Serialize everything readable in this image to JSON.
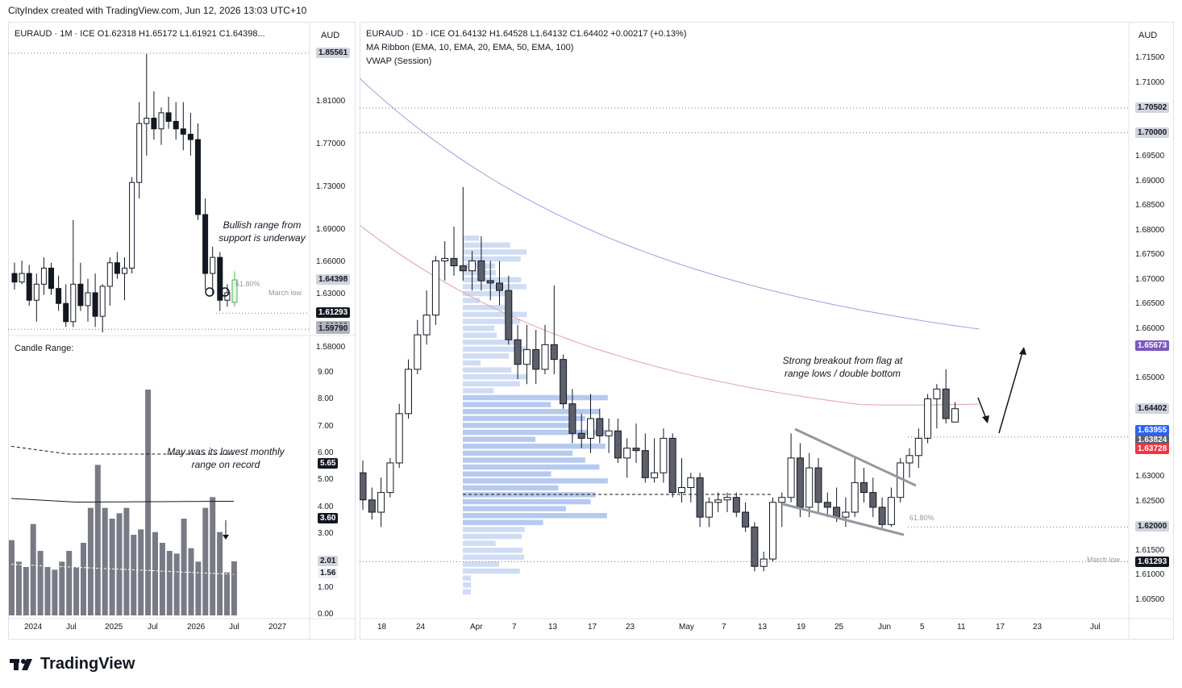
{
  "header": "CityIndex created with TradingView.com, Jun 12, 2026 13:03 UTC+10",
  "left_chart": {
    "title": "EURAUD · 1M · ICE",
    "ohlc": "O1.62318  H1.65172  L1.61921  C1.64398...",
    "currency": "AUD",
    "price_ticks": [
      "1.85561",
      "1.81000",
      "1.77000",
      "1.73000",
      "1.69000",
      "1.66000",
      "1.64398",
      "1.63000",
      "1.61293",
      "1.60000",
      "1.59790",
      "1.58000"
    ],
    "x_ticks": [
      "2024",
      "Jul",
      "2025",
      "Jul",
      "2026",
      "Jul",
      "2027"
    ],
    "annotation": "Bullish range from support is underway",
    "fib_label": "61.80%",
    "march_low_label": "March low"
  },
  "range_chart": {
    "title": "Candle Range:",
    "y_ticks": [
      "9.00",
      "8.00",
      "7.00",
      "6.00",
      "5.65",
      "5.00",
      "4.00",
      "3.60",
      "3.00",
      "2.01",
      "1.56",
      "1.00",
      "0.00"
    ],
    "annotation": "May was its lowest monthly range on record"
  },
  "right_chart": {
    "title": "EURAUD · 1D · ICE",
    "ohlc": "O1.64132  H1.64528  L1.64132  C1.64402  +0.00217 (+0.13%)",
    "indicator1": "MA Ribbon (EMA, 10, EMA, 20, EMA, 50, EMA, 100)",
    "indicator2": "VWAP (Session)",
    "currency": "AUD",
    "price_ticks": [
      "1.71500",
      "1.71000",
      "1.70502",
      "1.70000",
      "1.69500",
      "1.69000",
      "1.68500",
      "1.68000",
      "1.67500",
      "1.67000",
      "1.66500",
      "1.66000",
      "1.65673",
      "1.65000",
      "1.64402",
      "1.63955",
      "1.63824",
      "1.63728",
      "1.63000",
      "1.62500",
      "1.62000",
      "1.61500",
      "1.61293",
      "1.61000",
      "1.60500"
    ],
    "x_ticks": [
      "18",
      "24",
      "Apr",
      "7",
      "13",
      "17",
      "23",
      "May",
      "7",
      "13",
      "19",
      "25",
      "Jun",
      "5",
      "11",
      "17",
      "23",
      "Jul"
    ],
    "annotation": "Strong breakout from flag at range lows / double bottom",
    "fib_label": "61.80%",
    "march_low_label": "March low"
  },
  "chart_data": [
    {
      "type": "candlestick",
      "title": "EURAUD · 1M · ICE",
      "note": "monthly candles, 2024 to Jun 2026",
      "candles": [
        [
          1.65,
          1.66,
          1.635,
          1.642
        ],
        [
          1.642,
          1.662,
          1.64,
          1.65
        ],
        [
          1.65,
          1.658,
          1.62,
          1.625
        ],
        [
          1.625,
          1.65,
          1.605,
          1.64
        ],
        [
          1.64,
          1.665,
          1.63,
          1.655
        ],
        [
          1.655,
          1.66,
          1.63,
          1.636
        ],
        [
          1.636,
          1.648,
          1.615,
          1.622
        ],
        [
          1.622,
          1.64,
          1.6,
          1.605
        ],
        [
          1.605,
          1.7,
          1.6,
          1.64
        ],
        [
          1.64,
          1.66,
          1.615,
          1.62
        ],
        [
          1.62,
          1.645,
          1.605,
          1.632
        ],
        [
          1.632,
          1.65,
          1.6,
          1.61
        ],
        [
          1.61,
          1.64,
          1.595,
          1.638
        ],
        [
          1.638,
          1.665,
          1.62,
          1.66
        ],
        [
          1.66,
          1.67,
          1.645,
          1.65
        ],
        [
          1.65,
          1.665,
          1.625,
          1.655
        ],
        [
          1.655,
          1.74,
          1.65,
          1.735
        ],
        [
          1.735,
          1.81,
          1.72,
          1.79
        ],
        [
          1.79,
          1.855,
          1.76,
          1.795
        ],
        [
          1.795,
          1.82,
          1.775,
          1.785
        ],
        [
          1.785,
          1.805,
          1.77,
          1.8
        ],
        [
          1.8,
          1.815,
          1.785,
          1.792
        ],
        [
          1.792,
          1.81,
          1.775,
          1.785
        ],
        [
          1.785,
          1.81,
          1.765,
          1.78
        ],
        [
          1.78,
          1.8,
          1.76,
          1.775
        ],
        [
          1.775,
          1.79,
          1.7,
          1.705
        ],
        [
          1.705,
          1.72,
          1.635,
          1.65
        ],
        [
          1.65,
          1.675,
          1.63,
          1.665
        ],
        [
          1.665,
          1.67,
          1.615,
          1.625
        ],
        [
          1.625,
          1.64,
          1.619,
          1.632
        ],
        [
          1.623,
          1.652,
          1.619,
          1.644
        ]
      ]
    },
    {
      "type": "bar",
      "title": "Candle Range:",
      "values": [
        2.8,
        2.0,
        1.8,
        3.4,
        2.4,
        1.8,
        1.7,
        2.0,
        2.4,
        1.8,
        2.7,
        4.0,
        5.6,
        4.0,
        3.6,
        3.8,
        4.0,
        3.0,
        3.2,
        8.4,
        3.1,
        2.7,
        2.4,
        2.3,
        3.6,
        2.5,
        2.0,
        4.0,
        4.4,
        3.1,
        1.6,
        2.01
      ]
    },
    {
      "type": "candlestick",
      "title": "EURAUD · 1D · ICE",
      "note": "daily candles, Mar 18 to Jun 12 2026",
      "candles": [
        [
          1.631,
          1.6335,
          1.6235,
          1.6255
        ],
        [
          1.6255,
          1.628,
          1.6215,
          1.623
        ],
        [
          1.623,
          1.63,
          1.62,
          1.627
        ],
        [
          1.627,
          1.634,
          1.626,
          1.633
        ],
        [
          1.633,
          1.645,
          1.632,
          1.643
        ],
        [
          1.643,
          1.654,
          1.642,
          1.652
        ],
        [
          1.652,
          1.662,
          1.651,
          1.659
        ],
        [
          1.659,
          1.668,
          1.657,
          1.663
        ],
        [
          1.663,
          1.675,
          1.661,
          1.674
        ],
        [
          1.674,
          1.678,
          1.67,
          1.6745
        ],
        [
          1.6745,
          1.681,
          1.671,
          1.673
        ],
        [
          1.673,
          1.689,
          1.67,
          1.672
        ],
        [
          1.672,
          1.676,
          1.668,
          1.674
        ],
        [
          1.674,
          1.679,
          1.668,
          1.67
        ],
        [
          1.67,
          1.674,
          1.666,
          1.6695
        ],
        [
          1.6695,
          1.674,
          1.665,
          1.668
        ],
        [
          1.668,
          1.671,
          1.657,
          1.658
        ],
        [
          1.658,
          1.661,
          1.65,
          1.653
        ],
        [
          1.653,
          1.661,
          1.649,
          1.656
        ],
        [
          1.656,
          1.66,
          1.649,
          1.652
        ],
        [
          1.652,
          1.661,
          1.651,
          1.657
        ],
        [
          1.657,
          1.669,
          1.651,
          1.654
        ],
        [
          1.654,
          1.655,
          1.644,
          1.645
        ],
        [
          1.645,
          1.648,
          1.637,
          1.639
        ],
        [
          1.639,
          1.643,
          1.636,
          1.638
        ],
        [
          1.638,
          1.647,
          1.635,
          1.642
        ],
        [
          1.642,
          1.644,
          1.637,
          1.6385
        ],
        [
          1.6385,
          1.642,
          1.635,
          1.6395
        ],
        [
          1.6395,
          1.642,
          1.633,
          1.634
        ],
        [
          1.634,
          1.638,
          1.63,
          1.636
        ],
        [
          1.636,
          1.641,
          1.633,
          1.6355
        ],
        [
          1.6355,
          1.639,
          1.629,
          1.63
        ],
        [
          1.63,
          1.638,
          1.629,
          1.631
        ],
        [
          1.631,
          1.64,
          1.629,
          1.638
        ],
        [
          1.638,
          1.639,
          1.626,
          1.627
        ],
        [
          1.627,
          1.634,
          1.625,
          1.628
        ],
        [
          1.628,
          1.631,
          1.625,
          1.63
        ],
        [
          1.63,
          1.631,
          1.62,
          1.622
        ],
        [
          1.622,
          1.626,
          1.62,
          1.625
        ],
        [
          1.625,
          1.627,
          1.623,
          1.6255
        ],
        [
          1.6255,
          1.627,
          1.623,
          1.626
        ],
        [
          1.626,
          1.627,
          1.622,
          1.623
        ],
        [
          1.623,
          1.625,
          1.619,
          1.62
        ],
        [
          1.62,
          1.621,
          1.611,
          1.612
        ],
        [
          1.612,
          1.615,
          1.611,
          1.6135
        ],
        [
          1.6135,
          1.626,
          1.613,
          1.625
        ],
        [
          1.625,
          1.627,
          1.62,
          1.626
        ],
        [
          1.626,
          1.639,
          1.625,
          1.634
        ],
        [
          1.634,
          1.637,
          1.622,
          1.624
        ],
        [
          1.624,
          1.635,
          1.622,
          1.632
        ],
        [
          1.632,
          1.634,
          1.623,
          1.625
        ],
        [
          1.625,
          1.627,
          1.622,
          1.624
        ],
        [
          1.624,
          1.628,
          1.621,
          1.622
        ],
        [
          1.622,
          1.626,
          1.62,
          1.623
        ],
        [
          1.623,
          1.634,
          1.622,
          1.629
        ],
        [
          1.629,
          1.632,
          1.625,
          1.627
        ],
        [
          1.627,
          1.63,
          1.622,
          1.624
        ],
        [
          1.624,
          1.626,
          1.6195,
          1.6205
        ],
        [
          1.6205,
          1.628,
          1.62,
          1.626
        ],
        [
          1.626,
          1.634,
          1.625,
          1.633
        ],
        [
          1.633,
          1.636,
          1.63,
          1.6345
        ],
        [
          1.6345,
          1.64,
          1.632,
          1.638
        ],
        [
          1.638,
          1.647,
          1.637,
          1.646
        ],
        [
          1.646,
          1.649,
          1.64,
          1.648
        ],
        [
          1.648,
          1.652,
          1.641,
          1.642
        ],
        [
          1.6413,
          1.6453,
          1.6413,
          1.644
        ]
      ]
    }
  ]
}
